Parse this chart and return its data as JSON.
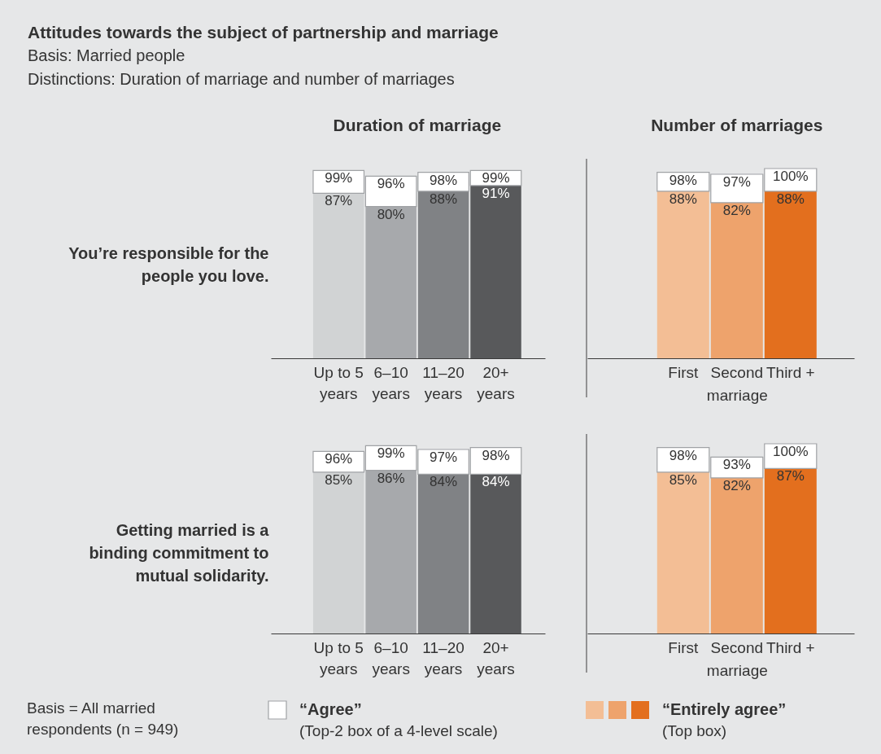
{
  "chart_data": [
    {
      "type": "bar",
      "stacked": true,
      "title": "Duration of marriage",
      "ylabel": "You’re responsible for the people you love.",
      "annotations": [
        "Attitudes towards the subject of partnership and marriage",
        "Basis: Married people",
        "Distinctions: Duration of marriage and number of marriages"
      ],
      "categories": [
        "Up to 5 years",
        "6–10 years",
        "11–20 years",
        "20+ years"
      ],
      "ylim": [
        0,
        100
      ],
      "tick_labels": "x",
      "series": [
        {
          "colors": [
            "#d1d3d4",
            "#a7a9ac",
            "#808285",
            "#58595b"
          ],
          "values": [
            87,
            80,
            88,
            91
          ],
          "value_labels": [
            "87%",
            "80%",
            "88%",
            "91%"
          ]
        },
        {
          "color": "#ffffff",
          "values": [
            12,
            16,
            10,
            8
          ]
        }
      ],
      "totals": [
        "99%",
        "96%",
        "98%",
        "99%"
      ]
    },
    {
      "type": "bar",
      "stacked": true,
      "title": "Number of marriages",
      "xlabel": "marriage",
      "categories": [
        "First",
        "Second",
        "Third +"
      ],
      "ylim": [
        0,
        100
      ],
      "tick_labels": "x",
      "series": [
        {
          "colors": [
            "#f3be95",
            "#eea36c",
            "#e36f1e"
          ],
          "values": [
            88,
            82,
            88
          ],
          "value_labels": [
            "88%",
            "82%",
            "88%"
          ]
        },
        {
          "color": "#ffffff",
          "values": [
            10,
            15,
            12
          ]
        }
      ],
      "totals": [
        "98%",
        "97%",
        "100%"
      ]
    },
    {
      "type": "bar",
      "stacked": true,
      "ylabel": "Getting married is a binding commitment to mutual solidarity.",
      "annotations": [
        "Basis = All married respondents (n = 949)",
        "(Top-2 box of a 4-level scale)"
      ],
      "categories": [
        "Up to 5 years",
        "6–10 years",
        "11–20 years",
        "20+ years"
      ],
      "ylim": [
        0,
        100
      ],
      "tick_labels": "x",
      "legend": "bottom",
      "series": [
        {
          "colors": [
            "#d1d3d4",
            "#a7a9ac",
            "#808285",
            "#58595b"
          ],
          "values": [
            85,
            86,
            84,
            84
          ],
          "value_labels": [
            "85%",
            "86%",
            "84%",
            "84%"
          ]
        },
        {
          "name": "“Agree”",
          "color": "#ffffff",
          "values": [
            11,
            13,
            13,
            14
          ]
        }
      ],
      "totals": [
        "96%",
        "99%",
        "97%",
        "98%"
      ]
    },
    {
      "type": "bar",
      "stacked": true,
      "xlabel": "marriage",
      "annotations": [
        "(Top box)"
      ],
      "categories": [
        "First",
        "Second",
        "Third +"
      ],
      "ylim": [
        0,
        100
      ],
      "tick_labels": "x",
      "legend": "bottom",
      "series": [
        {
          "name": "“Entirely agree”",
          "colors": [
            "#f3be95",
            "#eea36c",
            "#e36f1e"
          ],
          "values": [
            85,
            82,
            87
          ],
          "value_labels": [
            "85%",
            "82%",
            "87%"
          ]
        },
        {
          "color": "#ffffff",
          "values": [
            13,
            11,
            13
          ]
        }
      ],
      "totals": [
        "98%",
        "93%",
        "100%"
      ]
    }
  ]
}
